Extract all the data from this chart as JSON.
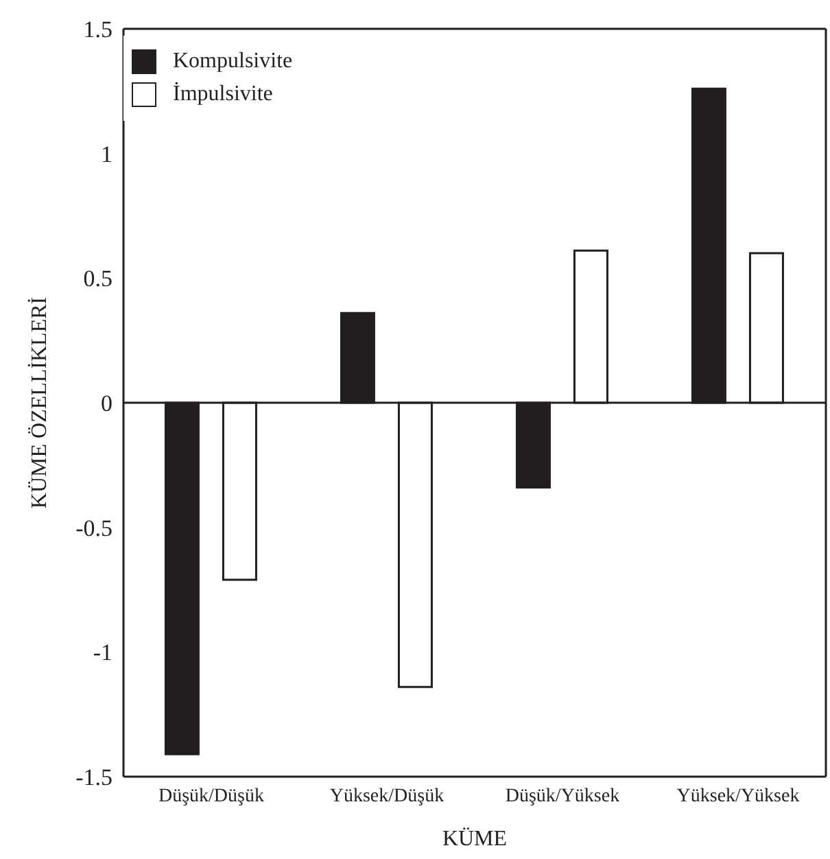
{
  "chart_data": {
    "type": "bar",
    "xlabel": "KÜME",
    "ylabel": "KÜME ÖZELLİKLERİ",
    "categories": [
      "Düşük/Düşük",
      "Yüksek/Düşük",
      "Düşük/Yüksek",
      "Yüksek/Yüksek"
    ],
    "series": [
      {
        "name": "Kompulsivite",
        "color": "#231f20",
        "values": [
          -1.41,
          0.36,
          -0.34,
          1.26
        ]
      },
      {
        "name": "İmpulsivite",
        "color": "#ffffff",
        "values": [
          -0.71,
          -1.14,
          0.61,
          0.6
        ]
      }
    ],
    "ylim": [
      -1.5,
      1.5
    ],
    "yticks": [
      -1.5,
      -1,
      -0.5,
      0,
      0.5,
      1,
      1.5
    ],
    "ref_lines": [
      {
        "axis": "y",
        "value": 0,
        "color": "#231f20"
      }
    ],
    "grid": false,
    "legend": "top left"
  }
}
